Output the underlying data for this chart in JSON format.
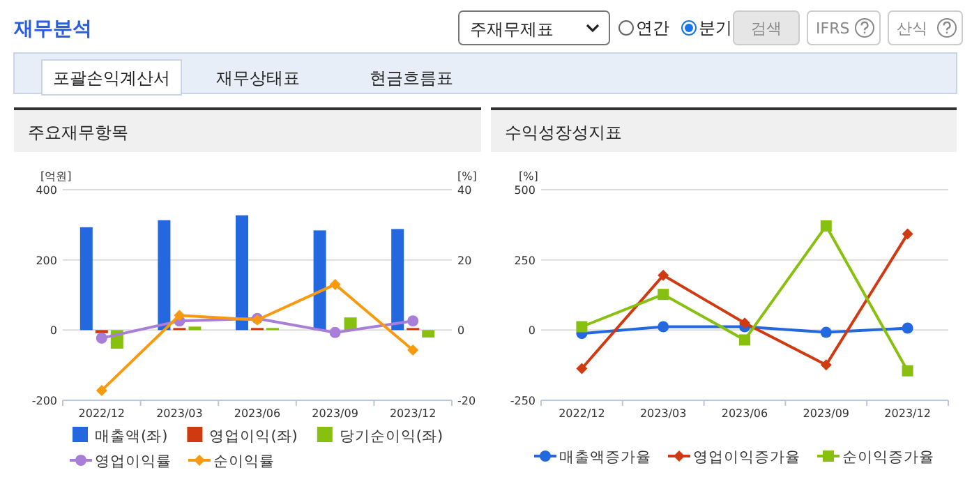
{
  "chart_data": [
    {
      "type": "other",
      "title": "재무분석",
      "annotations": [
        "주재무제표",
        "연간",
        "분기",
        "검색",
        "IFRS",
        "산식",
        "포괄손익계산서",
        "재무상태표",
        "현금흐름표"
      ]
    },
    {
      "type": "bar",
      "title": "주요재무항목",
      "ylabel": "[억원]",
      "y2label": "[%]",
      "categories": [
        "2022/12",
        "2023/03",
        "2023/06",
        "2023/09",
        "2023/12"
      ],
      "ylim": [
        -200,
        400
      ],
      "yticks": [
        -200,
        0,
        200,
        400
      ],
      "y2lim": [
        -20,
        40
      ],
      "y2ticks": [
        -20,
        0,
        20,
        40
      ],
      "grid": "y",
      "legend": "bottom",
      "series": [
        {
          "name": "매출액(좌)",
          "color": "#2468e0",
          "values": [
            293,
            313,
            327,
            284,
            288
          ]
        },
        {
          "name": "영업이익(좌)",
          "color": "#d03a10",
          "values": [
            -9,
            6,
            6,
            null,
            6
          ]
        },
        {
          "name": "당기순이익(좌)",
          "color": "#88c010",
          "values": [
            -53,
            10,
            6,
            36,
            -21
          ]
        },
        {
          "name": "영업이익률",
          "type": "line",
          "axis": "y2",
          "marker": "circle",
          "color": "#a87ed8",
          "values": [
            -2.3,
            2.6,
            3.3,
            -0.7,
            2.6
          ]
        },
        {
          "name": "순이익률",
          "type": "line",
          "axis": "y2",
          "marker": "diamond",
          "color": "#f89a10",
          "values": [
            -17.2,
            4.2,
            2.9,
            13.0,
            -5.7
          ]
        }
      ]
    },
    {
      "type": "line",
      "title": "수익성장성지표",
      "ylabel": "[%]",
      "categories": [
        "2022/12",
        "2023/03",
        "2023/06",
        "2023/09",
        "2023/12"
      ],
      "ylim": [
        -250,
        500
      ],
      "yticks": [
        -250,
        0,
        250,
        500
      ],
      "grid": "y",
      "legend": "bottom",
      "series": [
        {
          "name": "매출액증가율",
          "marker": "circle",
          "color": "#2468e0",
          "values": [
            -12,
            12,
            12,
            -8,
            7
          ]
        },
        {
          "name": "영업이익증가율",
          "marker": "diamond",
          "color": "#d03a10",
          "values": [
            -137,
            195,
            25,
            -124,
            342
          ]
        },
        {
          "name": "순이익증가율",
          "marker": "square",
          "color": "#88c010",
          "values": [
            12,
            127,
            -35,
            371,
            -145
          ]
        }
      ]
    }
  ]
}
